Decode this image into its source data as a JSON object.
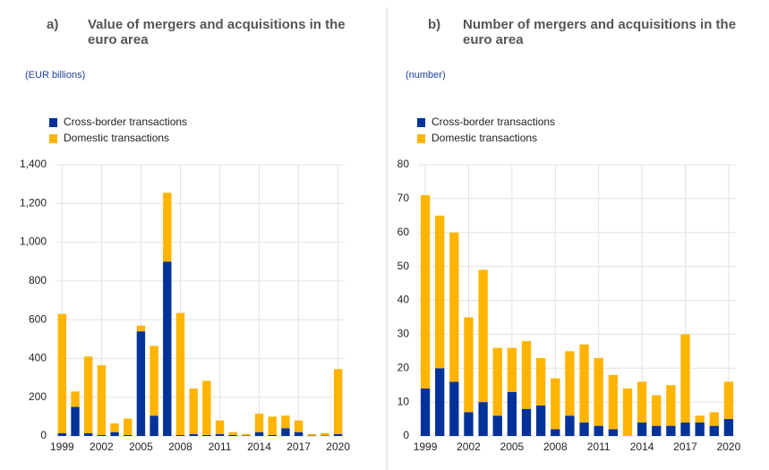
{
  "chart_data": [
    {
      "type": "bar",
      "stacked": true,
      "panel_label": "a)",
      "title": "Value of mergers and acquisitions in the euro area",
      "subtitle": "(EUR billions)",
      "categories": [
        "1999",
        null,
        null,
        "2002",
        null,
        null,
        "2005",
        null,
        null,
        "2008",
        null,
        null,
        "2011",
        null,
        null,
        "2014",
        null,
        null,
        "2017",
        null,
        null,
        "2020"
      ],
      "series": [
        {
          "name": "Cross-border transactions",
          "color": "#003299",
          "values": [
            15,
            150,
            15,
            5,
            20,
            5,
            540,
            105,
            900,
            5,
            10,
            5,
            10,
            5,
            2,
            20,
            5,
            40,
            20,
            2,
            2,
            10
          ]
        },
        {
          "name": "Domestic transactions",
          "color": "#ffb400",
          "values": [
            615,
            80,
            395,
            360,
            45,
            85,
            30,
            360,
            355,
            630,
            235,
            280,
            70,
            15,
            8,
            95,
            95,
            65,
            60,
            8,
            13,
            335
          ]
        }
      ],
      "ylim": [
        0,
        1400
      ],
      "yticks": [
        0,
        200,
        400,
        600,
        800,
        {
          "value": 1000,
          "label": "1,000"
        },
        {
          "value": 1200,
          "label": "1,200"
        },
        {
          "value": 1400,
          "label": "1,400"
        }
      ],
      "grid": true
    },
    {
      "type": "bar",
      "stacked": true,
      "panel_label": "b)",
      "title": "Number of mergers and acquisitions in the euro area",
      "subtitle": "(number)",
      "categories": [
        "1999",
        null,
        null,
        "2002",
        null,
        null,
        "2005",
        null,
        null,
        "2008",
        null,
        null,
        "2011",
        null,
        null,
        "2014",
        null,
        null,
        "2017",
        null,
        null,
        "2020"
      ],
      "series": [
        {
          "name": "Cross-border transactions",
          "color": "#003299",
          "values": [
            14,
            20,
            16,
            7,
            10,
            6,
            13,
            8,
            9,
            2,
            6,
            4,
            3,
            2,
            0,
            4,
            3,
            3,
            4,
            4,
            3,
            5
          ]
        },
        {
          "name": "Domestic transactions",
          "color": "#ffb400",
          "values": [
            57,
            45,
            44,
            28,
            39,
            20,
            13,
            20,
            14,
            15,
            19,
            23,
            20,
            16,
            14,
            12,
            9,
            12,
            26,
            2,
            4,
            11
          ]
        }
      ],
      "ylim": [
        0,
        80
      ],
      "yticks": [
        0,
        10,
        20,
        30,
        40,
        50,
        60,
        70,
        80
      ],
      "grid": true
    }
  ]
}
